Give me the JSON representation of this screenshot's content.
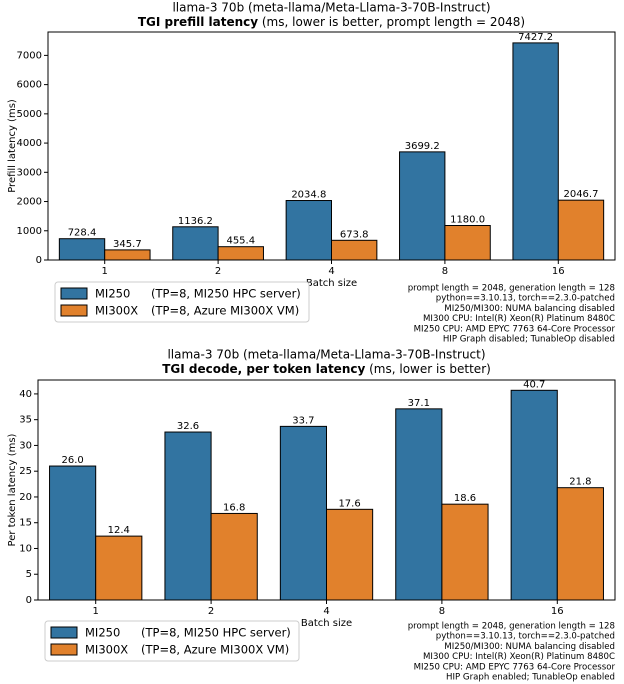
{
  "chart_data": [
    {
      "type": "bar",
      "title": "llama-3 70b (meta-llama/Meta-Llama-3-70B-Instruct)",
      "subtitle": "TGI prefill latency",
      "subtitle_note": "(ms, lower is better, prompt length = 2048)",
      "x_label": "Batch size",
      "y_label": "Prefill latency (ms)",
      "categories": [
        "1",
        "2",
        "4",
        "8",
        "16"
      ],
      "series": [
        {
          "name": "MI250",
          "note": "(TP=8, MI250 HPC server)",
          "color": "#3274a1",
          "values": [
            728.4,
            1136.2,
            2034.8,
            3699.2,
            7427.2
          ],
          "value_labels": [
            "728.4",
            "1136.2",
            "2034.8",
            "3699.2",
            "7427.2"
          ]
        },
        {
          "name": "MI300X",
          "note": "(TP=8, Azure MI300X VM)",
          "color": "#e1812c",
          "values": [
            345.7,
            455.4,
            673.8,
            1180,
            2046.7
          ],
          "value_labels": [
            "345.7",
            "455.4",
            "673.8",
            "1180.0",
            "2046.7"
          ]
        }
      ],
      "ylim": [
        0,
        7800
      ],
      "yticks": [
        0,
        1000,
        2000,
        3000,
        4000,
        5000,
        6000,
        7000
      ],
      "legend": "lower left",
      "annotations": [
        "prompt length = 2048, generation length = 128",
        "python==3.10.13, torch==2.3.0-patched",
        "MI250/MI300: NUMA balancing disabled",
        "MI300 CPU: Intel(R) Xeon(R) Platinum 8480C",
        "MI250 CPU: AMD EPYC 7763 64-Core Processor",
        "HIP Graph disabled; TunableOp disabled"
      ]
    },
    {
      "type": "bar",
      "title": "llama-3 70b (meta-llama/Meta-Llama-3-70B-Instruct)",
      "subtitle": "TGI decode, per token latency",
      "subtitle_note": "(ms, lower is better)",
      "x_label": "Batch size",
      "y_label": "Per token latency (ms)",
      "categories": [
        "1",
        "2",
        "4",
        "8",
        "16"
      ],
      "series": [
        {
          "name": "MI250",
          "note": "(TP=8, MI250 HPC server)",
          "color": "#3274a1",
          "values": [
            26,
            32.6,
            33.7,
            37.1,
            40.7
          ],
          "value_labels": [
            "26.0",
            "32.6",
            "33.7",
            "37.1",
            "40.7"
          ]
        },
        {
          "name": "MI300X",
          "note": "(TP=8, Azure MI300X VM)",
          "color": "#e1812c",
          "values": [
            12.4,
            16.8,
            17.6,
            18.6,
            21.8
          ],
          "value_labels": [
            "12.4",
            "16.8",
            "17.6",
            "18.6",
            "21.8"
          ]
        }
      ],
      "ylim": [
        0,
        42.7
      ],
      "yticks": [
        0,
        5,
        10,
        15,
        20,
        25,
        30,
        35,
        40
      ],
      "legend": "lower left",
      "annotations": [
        "prompt length = 2048, generation length = 128",
        "python==3.10.13, torch==2.3.0-patched",
        "MI250/MI300: NUMA balancing disabled",
        "MI300 CPU: Intel(R) Xeon(R) Platinum 8480C",
        "MI250 CPU: AMD EPYC 7763 64-Core Processor",
        "HIP Graph enabled; TunableOp enabled"
      ]
    }
  ]
}
